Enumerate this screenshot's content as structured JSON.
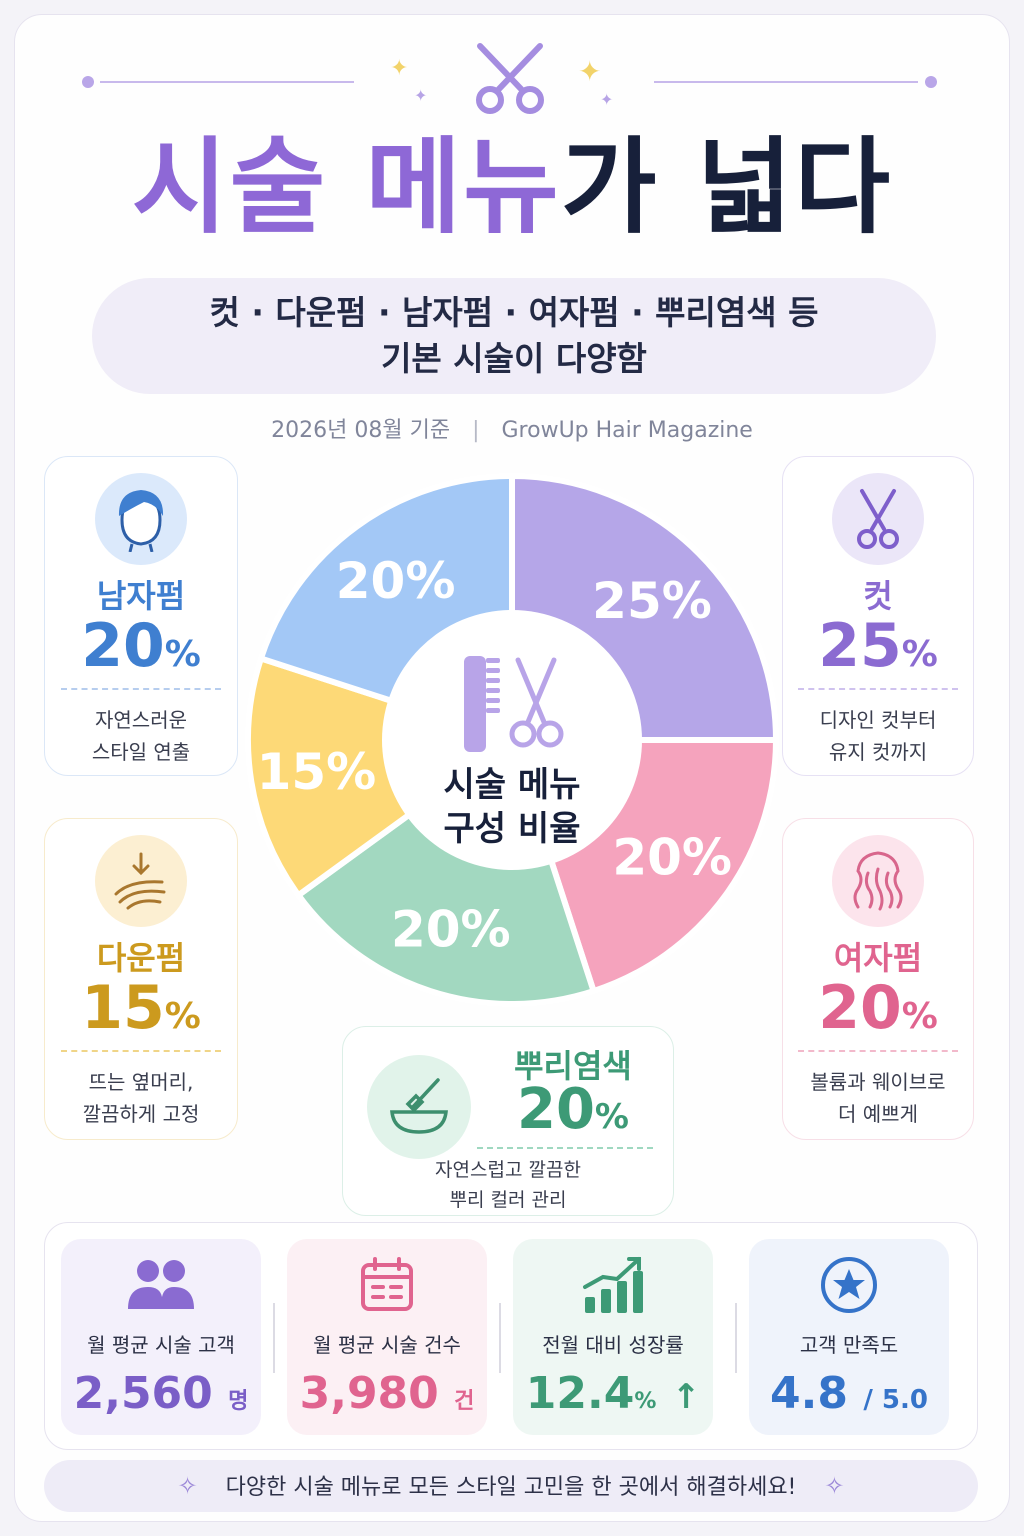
{
  "header": {
    "title_part1": "시술 메뉴",
    "title_part2": "가 넓다",
    "subtitle_line1": "컷 · 다운펌 · 남자펌 · 여자펌 · 뿌리염색 등",
    "subtitle_line2": "기본 시술이 다양함",
    "date": "2026년 08월 기준",
    "source": "GrowUp Hair Magazine"
  },
  "chart_data": {
    "type": "pie",
    "title": "시술 메뉴 구성 비율",
    "center_line1": "시술 메뉴",
    "center_line2": "구성 비율",
    "slices": [
      {
        "name": "컷",
        "value": 25,
        "label": "25%",
        "color": "#b5a6e8"
      },
      {
        "name": "여자펌",
        "value": 20,
        "label": "20%",
        "color": "#f5a3bd"
      },
      {
        "name": "뿌리염색",
        "value": 20,
        "label": "20%",
        "color": "#a2d8c0"
      },
      {
        "name": "다운펌",
        "value": 15,
        "label": "15%",
        "color": "#fdd977"
      },
      {
        "name": "남자펌",
        "value": 20,
        "label": "20%",
        "color": "#a3c8f6"
      }
    ]
  },
  "cards": {
    "men_perm": {
      "label": "남자펌",
      "value": "20",
      "unit": "%",
      "desc1": "자연스러운",
      "desc2": "스타일 연출",
      "color": "#3f7fd0"
    },
    "down_perm": {
      "label": "다운펌",
      "value": "15",
      "unit": "%",
      "desc1": "뜨는 옆머리,",
      "desc2": "깔끔하게 고정",
      "color": "#cc9a1e"
    },
    "cut": {
      "label": "컷",
      "value": "25",
      "unit": "%",
      "desc1": "디자인 컷부터",
      "desc2": "유지 컷까지",
      "color": "#8b6bd1"
    },
    "women_perm": {
      "label": "여자펌",
      "value": "20",
      "unit": "%",
      "desc1": "볼륨과 웨이브로",
      "desc2": "더 예쁘게",
      "color": "#e0648f"
    },
    "root_dye": {
      "label": "뿌리염색",
      "value": "20",
      "unit": "%",
      "desc1": "자연스럽고 깔끔한",
      "desc2": "뿌리 컬러 관리",
      "color": "#3d9a76"
    }
  },
  "stats": [
    {
      "label": "월 평균 시술 고객",
      "value": "2,560",
      "unit": "명",
      "color": "#7a5ec7"
    },
    {
      "label": "월 평균 시술 건수",
      "value": "3,980",
      "unit": "건",
      "color": "#e0648f"
    },
    {
      "label": "전월 대비 성장률",
      "value": "12.4",
      "unit": "%",
      "arrow": "↑",
      "color": "#3d9a76"
    },
    {
      "label": "고객 만족도",
      "value": "4.8",
      "unit": "/ 5.0",
      "color": "#3573c9"
    }
  ],
  "footer": {
    "text": "다양한 시술 메뉴로 모든 스타일 고민을 한 곳에서 해결하세요!"
  }
}
